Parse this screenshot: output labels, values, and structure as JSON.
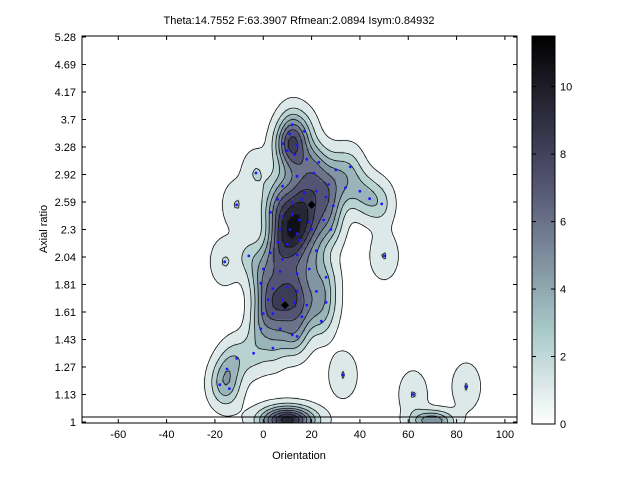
{
  "chart_data": {
    "type": "contour",
    "title": "Theta:14.7552 F:63.3907 Rfmean:2.0894 Isym:0.84932",
    "xlabel": "Orientation",
    "ylabel": "Axial ratio",
    "xlim": [
      -75,
      105
    ],
    "x_ticks": [
      -60,
      -40,
      -20,
      0,
      20,
      40,
      60,
      80,
      100
    ],
    "y_ticks": [
      1,
      1.13,
      1.27,
      1.43,
      1.61,
      1.81,
      2.04,
      2.3,
      2.59,
      2.92,
      3.28,
      3.7,
      4.17,
      4.69,
      5.28
    ],
    "colorbar": {
      "ticks": [
        0,
        2,
        4,
        6,
        8,
        10
      ],
      "max": 11.5,
      "colormap": "bone (reversed)"
    },
    "contour_levels": [
      0.5,
      1.7,
      2.9,
      4.1,
      5.3,
      6.5,
      7.7,
      8.9,
      10.1
    ],
    "peaks": [
      {
        "x": 20,
        "y": 2.56
      },
      {
        "x": 9,
        "y": 1.66
      }
    ],
    "points_color": "#1a1aff",
    "points": [
      [
        12,
        3.62
      ],
      [
        11,
        3.48
      ],
      [
        17,
        3.52
      ],
      [
        8,
        3.33
      ],
      [
        10,
        3.23
      ],
      [
        14,
        3.3
      ],
      [
        23,
        3.08
      ],
      [
        13,
        3.18
      ],
      [
        18,
        3.12
      ],
      [
        30,
        2.98
      ],
      [
        36,
        3.02
      ],
      [
        -3,
        2.94
      ],
      [
        14,
        2.9
      ],
      [
        21,
        2.94
      ],
      [
        27,
        2.8
      ],
      [
        34,
        2.76
      ],
      [
        40,
        2.72
      ],
      [
        44,
        2.63
      ],
      [
        8,
        2.78
      ],
      [
        17,
        2.7
      ],
      [
        22,
        2.72
      ],
      [
        26,
        2.65
      ],
      [
        6,
        2.62
      ],
      [
        12,
        2.58
      ],
      [
        16,
        2.62
      ],
      [
        20,
        2.56
      ],
      [
        29,
        2.55
      ],
      [
        49,
        2.57
      ],
      [
        -11,
        2.56
      ],
      [
        3,
        2.48
      ],
      [
        8,
        2.44
      ],
      [
        12,
        2.46
      ],
      [
        15,
        2.4
      ],
      [
        19,
        2.38
      ],
      [
        25,
        2.4
      ],
      [
        7,
        2.3
      ],
      [
        11,
        2.3
      ],
      [
        14,
        2.26
      ],
      [
        20,
        2.3
      ],
      [
        28,
        2.3
      ],
      [
        6,
        2.18
      ],
      [
        10,
        2.16
      ],
      [
        15,
        2.2
      ],
      [
        22,
        2.1
      ],
      [
        -16,
        2.0
      ],
      [
        -6,
        2.05
      ],
      [
        3,
        2.08
      ],
      [
        8,
        2.02
      ],
      [
        14,
        2.06
      ],
      [
        50,
        2.05
      ],
      [
        0,
        1.94
      ],
      [
        7,
        1.92
      ],
      [
        14,
        1.9
      ],
      [
        19,
        1.94
      ],
      [
        26,
        1.87
      ],
      [
        -1,
        1.82
      ],
      [
        4,
        1.78
      ],
      [
        10,
        1.79
      ],
      [
        14,
        1.76
      ],
      [
        22,
        1.76
      ],
      [
        2,
        1.7
      ],
      [
        8,
        1.7
      ],
      [
        13,
        1.68
      ],
      [
        26,
        1.68
      ],
      [
        18,
        1.66
      ],
      [
        0,
        1.6
      ],
      [
        4,
        1.6
      ],
      [
        9,
        1.64
      ],
      [
        16,
        1.58
      ],
      [
        24,
        1.55
      ],
      [
        -1,
        1.5
      ],
      [
        7,
        1.5
      ],
      [
        12,
        1.46
      ],
      [
        14,
        1.45
      ],
      [
        4,
        1.38
      ],
      [
        -11,
        1.32
      ],
      [
        -4,
        1.35
      ],
      [
        -15,
        1.26
      ],
      [
        -14,
        1.16
      ],
      [
        -18,
        1.18
      ],
      [
        33,
        1.23
      ],
      [
        62,
        1.13
      ],
      [
        84,
        1.17
      ]
    ]
  }
}
